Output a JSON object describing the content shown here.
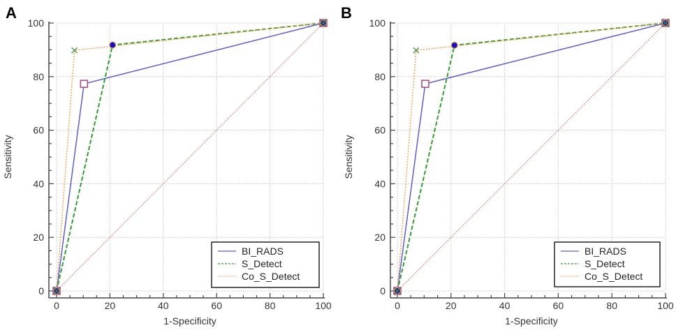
{
  "chart_data": [
    {
      "panel": "A",
      "type": "line",
      "title": "",
      "xlabel": "1-Specificity",
      "ylabel": "Sensitivity",
      "xlim": [
        0,
        100
      ],
      "ylim": [
        0,
        100
      ],
      "xticks": [
        0,
        20,
        40,
        60,
        80,
        100
      ],
      "yticks": [
        0,
        20,
        40,
        60,
        80,
        100
      ],
      "minor_tick_step": 5,
      "grid": true,
      "legend_position": "bottom-right",
      "reference_line": {
        "name": "Reference",
        "x": [
          0,
          100
        ],
        "y": [
          0,
          100
        ],
        "color": "#d98a8a",
        "style": "dotted"
      },
      "series": [
        {
          "name": "BI_RADS",
          "x": [
            0,
            10.3,
            100
          ],
          "y": [
            0,
            77.3,
            100
          ],
          "color": "#5b5bd6",
          "style": "solid",
          "marker": "open-square",
          "marker_color": "#a34a78"
        },
        {
          "name": "S_Detect",
          "x": [
            0,
            21.0,
            100
          ],
          "y": [
            0,
            91.8,
            100
          ],
          "color": "#2ea02e",
          "style": "dashed",
          "marker": "filled-circle",
          "marker_color": "#1010d0",
          "marker_edge": "#f0a040"
        },
        {
          "name": "Co_S_Detect",
          "x": [
            0,
            6.7,
            100
          ],
          "y": [
            0,
            89.8,
            100
          ],
          "color": "#f5a050",
          "style": "dotted",
          "marker": "x",
          "marker_color": "#3a8a3a"
        }
      ]
    },
    {
      "panel": "B",
      "type": "line",
      "title": "",
      "xlabel": "1-Specificity",
      "ylabel": "Sensitivity",
      "xlim": [
        0,
        100
      ],
      "ylim": [
        0,
        100
      ],
      "xticks": [
        0,
        20,
        40,
        60,
        80,
        100
      ],
      "yticks": [
        0,
        20,
        40,
        60,
        80,
        100
      ],
      "minor_tick_step": 5,
      "grid": true,
      "legend_position": "bottom-right",
      "reference_line": {
        "name": "Reference",
        "x": [
          0,
          100
        ],
        "y": [
          0,
          100
        ],
        "color": "#d98a8a",
        "style": "dotted"
      },
      "series": [
        {
          "name": "BI_RADS",
          "x": [
            0,
            10.4,
            100
          ],
          "y": [
            0,
            77.3,
            100
          ],
          "color": "#5b5bd6",
          "style": "solid",
          "marker": "open-square",
          "marker_color": "#a34a78"
        },
        {
          "name": "S_Detect",
          "x": [
            0,
            21.3,
            100
          ],
          "y": [
            0,
            91.7,
            100
          ],
          "color": "#2ea02e",
          "style": "dashed",
          "marker": "filled-circle",
          "marker_color": "#1010d0",
          "marker_edge": "#f0a040"
        },
        {
          "name": "Co_S_Detect",
          "x": [
            0,
            7.0,
            100
          ],
          "y": [
            0,
            89.8,
            100
          ],
          "color": "#f5a050",
          "style": "dotted",
          "marker": "x",
          "marker_color": "#3a8a3a"
        }
      ]
    }
  ]
}
